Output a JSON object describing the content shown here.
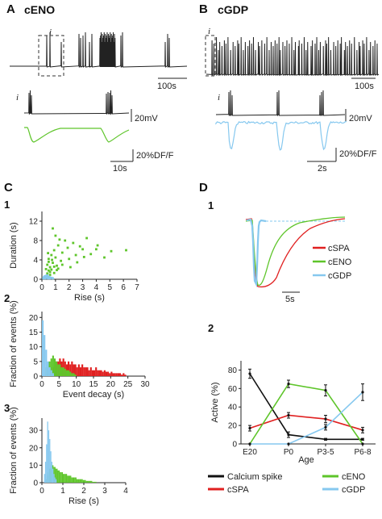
{
  "panels": {
    "A": {
      "label": "A",
      "title": "cENO",
      "top_scale": "100s",
      "inset": "i",
      "bottom_scales": [
        "20mV",
        "20%DF/F",
        "10s"
      ]
    },
    "B": {
      "label": "B",
      "title": "cGDP",
      "top_scale": "100s",
      "inset": "i",
      "bottom_scales": [
        "20mV",
        "20%DF/F",
        "2s"
      ]
    },
    "C": {
      "label": "C",
      "sub": [
        "1",
        "2",
        "3"
      ]
    },
    "D": {
      "label": "D",
      "sub": [
        "1",
        "2"
      ]
    }
  },
  "colors": {
    "cENO": "#5ec52a",
    "cGDP": "#86c8ef",
    "cSPA": "#e02020",
    "calcium": "#111111"
  },
  "chart_data": [
    {
      "id": "C1",
      "type": "scatter",
      "xlabel": "Rise (s)",
      "ylabel": "Duration (s)",
      "xlim": [
        0,
        7
      ],
      "ylim": [
        0,
        14
      ],
      "xticks": [
        "0",
        "1",
        "2",
        "3",
        "4",
        "5",
        "6",
        "7"
      ],
      "yticks": [
        "0",
        "4",
        "8",
        "12"
      ],
      "series": [
        {
          "color": "green",
          "x": [
            0.3,
            0.4,
            0.5,
            0.5,
            0.6,
            0.7,
            0.8,
            0.9,
            1.0,
            1.1,
            1.2,
            1.4,
            1.5,
            1.7,
            1.9,
            2.0,
            2.3,
            2.5,
            2.8,
            3.1,
            3.3,
            3.6,
            4.0,
            4.1,
            4.6,
            5.1,
            6.2,
            0.8,
            1.0,
            1.3,
            0.4,
            0.6,
            0.7,
            1.1,
            0.5,
            0.9,
            1.5,
            2.1,
            2.6,
            3.0,
            0.6,
            0.9,
            1.2,
            0.45,
            0.75
          ],
          "y": [
            2.1,
            3.0,
            1.8,
            4.2,
            2.5,
            5.0,
            3.4,
            6.0,
            4.5,
            2.8,
            7.0,
            3.8,
            5.5,
            8.0,
            6.5,
            4.2,
            7.5,
            5.0,
            6.8,
            4.6,
            8.5,
            5.2,
            6.2,
            7.0,
            4.5,
            5.8,
            6.0,
            10.5,
            9.0,
            8.2,
            1.2,
            1.5,
            2.0,
            1.9,
            3.6,
            2.6,
            3.0,
            2.5,
            3.5,
            6.2,
            0.9,
            1.3,
            2.2,
            5.4,
            4.0
          ]
        },
        {
          "color": "blue",
          "x": [
            0.1,
            0.15,
            0.2,
            0.2,
            0.25,
            0.3,
            0.35,
            0.4,
            0.45,
            0.5,
            0.55,
            0.6,
            0.7,
            0.8,
            0.3,
            0.4
          ],
          "y": [
            0.2,
            0.4,
            0.3,
            0.6,
            0.2,
            0.5,
            0.3,
            0.4,
            0.2,
            0.3,
            0.5,
            0.2,
            0.3,
            0.2,
            0.7,
            0.8
          ]
        }
      ]
    },
    {
      "id": "C2",
      "type": "bar",
      "xlabel": "Event decay (s)",
      "ylabel": "Fraction of events (%)",
      "xlim": [
        0,
        30
      ],
      "ylim": [
        0,
        22
      ],
      "xticks": [
        "0",
        "5",
        "10",
        "15",
        "20",
        "25",
        "30"
      ],
      "yticks": [
        "0",
        "5",
        "10",
        "15",
        "20"
      ],
      "bin_width": 0.5,
      "series": [
        {
          "name": "cGDP",
          "start": 0.0,
          "values": [
            19,
            14,
            9,
            5,
            3,
            2,
            1
          ]
        },
        {
          "name": "cENO",
          "start": 1.0,
          "values": [
            3,
            4,
            5,
            6,
            7,
            6,
            5,
            4,
            4,
            3,
            3,
            2.5,
            2,
            2,
            1.5,
            1,
            1,
            0.5
          ]
        },
        {
          "name": "cSPA",
          "start": 2.0,
          "values": [
            1,
            2,
            3,
            4,
            5,
            5,
            6,
            5,
            6,
            5,
            4,
            5,
            4,
            5,
            4,
            4,
            3,
            4,
            3,
            4,
            3,
            3,
            3,
            2,
            3,
            2,
            2,
            3,
            2,
            2,
            2,
            1.5,
            2,
            1.5,
            1.5,
            1,
            1.5,
            1,
            1,
            1,
            1,
            1,
            0.5,
            1,
            0.5
          ]
        }
      ]
    },
    {
      "id": "C3",
      "type": "bar",
      "xlabel": "Rise (s)",
      "ylabel": "Fraction of events (%)",
      "xlim": [
        0,
        4
      ],
      "ylim": [
        0,
        37
      ],
      "xticks": [
        "0",
        "1",
        "2",
        "3",
        "4"
      ],
      "yticks": [
        "0",
        "10",
        "20",
        "30"
      ],
      "bin_width": 0.05,
      "series": [
        {
          "name": "cGDP",
          "start": 0.1,
          "values": [
            5,
            12,
            22,
            35,
            30,
            25,
            18,
            12,
            8,
            5,
            3,
            2
          ]
        },
        {
          "name": "cENO",
          "start": 0.2,
          "values": [
            2,
            4,
            6,
            8,
            9,
            10,
            10,
            9,
            9,
            8,
            8,
            7,
            7,
            6,
            6,
            6,
            5,
            5,
            5,
            5,
            4,
            4,
            4,
            4,
            3,
            3,
            3,
            3,
            3,
            2,
            2,
            2,
            2,
            2,
            2,
            1.5,
            1.5,
            1.5,
            1,
            1,
            1,
            1,
            1,
            1,
            0.5,
            0.5,
            0.5,
            0.5
          ]
        }
      ]
    },
    {
      "id": "D2",
      "type": "line",
      "xlabel": "Age",
      "ylabel": "Active (%)",
      "categories": [
        "E20",
        "P0",
        "P3-5",
        "P6-8"
      ],
      "ylim": [
        0,
        90
      ],
      "yticks": [
        "0",
        "20",
        "40",
        "60",
        "80"
      ],
      "series": [
        {
          "name": "Calcium spike",
          "color": "#111111",
          "values": [
            76,
            10,
            5,
            5
          ],
          "err": [
            5,
            3,
            1,
            1
          ]
        },
        {
          "name": "cSPA",
          "color": "#e02020",
          "values": [
            17,
            31,
            27,
            15
          ],
          "err": [
            3,
            3,
            4,
            3
          ]
        },
        {
          "name": "cENO",
          "color": "#5ec52a",
          "values": [
            0,
            65,
            58,
            0
          ],
          "err": [
            0,
            4,
            6,
            0
          ]
        },
        {
          "name": "cGDP",
          "color": "#86c8ef",
          "values": [
            0,
            0,
            18,
            56
          ],
          "err": [
            0,
            0,
            3,
            9
          ]
        }
      ]
    },
    {
      "id": "D1",
      "type": "line",
      "legend": [
        "cSPA",
        "cENO",
        "cGDP"
      ],
      "scale": "5s"
    }
  ],
  "legend_D2": [
    "Calcium spike",
    "cENO",
    "cSPA",
    "cGDP"
  ]
}
